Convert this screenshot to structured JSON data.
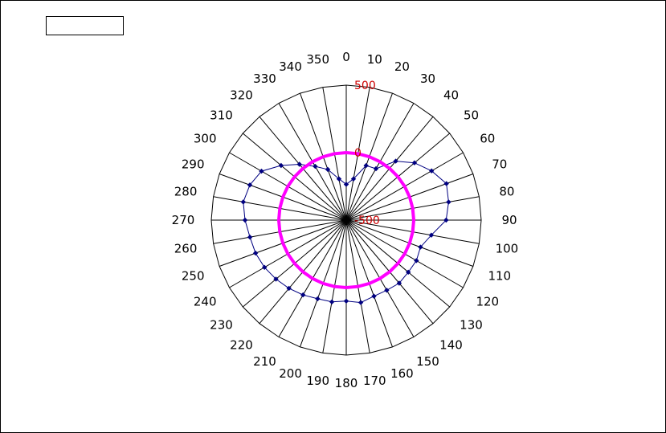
{
  "chart_data": {
    "type": "radar",
    "title": "",
    "angle_labels": [
      "0",
      "10",
      "20",
      "30",
      "40",
      "50",
      "60",
      "70",
      "80",
      "90",
      "100",
      "110",
      "120",
      "130",
      "140",
      "150",
      "160",
      "170",
      "180",
      "190",
      "200",
      "210",
      "220",
      "230",
      "240",
      "250",
      "260",
      "270",
      "280",
      "290",
      "300",
      "310",
      "320",
      "330",
      "340",
      "350"
    ],
    "radial_ticks": [
      "-500",
      "0",
      "500"
    ],
    "r_range": [
      -500,
      500
    ],
    "grid": true,
    "legend": {
      "position": "top-left",
      "entries": []
    },
    "series": [
      {
        "marker": "diamond",
        "color": "#000080",
        "values": [
          -235,
          -190,
          -70,
          -60,
          70,
          160,
          230,
          290,
          270,
          240,
          140,
          85,
          100,
          100,
          110,
          100,
          100,
          120,
          100,
          115,
          120,
          140,
          160,
          180,
          200,
          215,
          225,
          250,
          275,
          260,
          225,
          130,
          40,
          -40,
          -100,
          -190
        ]
      },
      {
        "line_only": true,
        "color": "#ff00ff",
        "values": [
          0,
          0,
          0,
          0,
          0,
          0,
          0,
          0,
          0,
          0,
          0,
          0,
          0,
          0,
          0,
          0,
          0,
          0,
          0,
          0,
          0,
          0,
          0,
          0,
          0,
          0,
          0,
          0,
          0,
          0,
          0,
          0,
          0,
          0,
          0,
          0
        ]
      }
    ],
    "colors": {
      "grid": "#000000",
      "tick_labels": "#cc0000",
      "series_1": "#000080",
      "series_2": "#ff00ff"
    }
  }
}
